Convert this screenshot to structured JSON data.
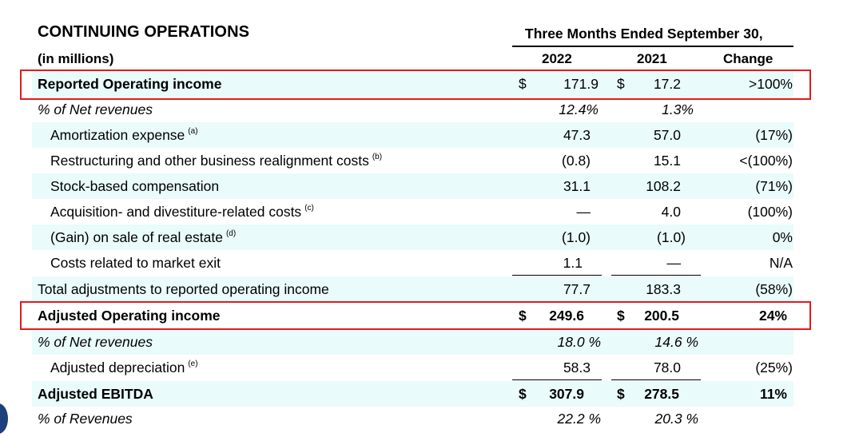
{
  "header": {
    "title": "CONTINUING OPERATIONS",
    "period": "Three Months Ended September 30,",
    "units": "(in millions)",
    "col_2022": "2022",
    "col_2021": "2021",
    "col_change": "Change"
  },
  "rows": [
    {
      "label": "Reported Operating income",
      "note": "",
      "d1": "$",
      "v2022": "171.9",
      "d2": "$",
      "v2021": "17.2",
      "change": ">100%"
    },
    {
      "label": "% of Net revenues",
      "note": "",
      "d1": "",
      "v2022": "12.4%",
      "d2": "",
      "v2021": "1.3%",
      "change": ""
    },
    {
      "label": "Amortization expense",
      "note": "(a)",
      "d1": "",
      "v2022": "47.3",
      "d2": "",
      "v2021": "57.0",
      "change": "(17%)"
    },
    {
      "label": "Restructuring and other business realignment costs",
      "note": "(b)",
      "d1": "",
      "v2022": "(0.8)",
      "d2": "",
      "v2021": "15.1",
      "change": "<(100%)"
    },
    {
      "label": "Stock-based compensation",
      "note": "",
      "d1": "",
      "v2022": "31.1",
      "d2": "",
      "v2021": "108.2",
      "change": "(71%)"
    },
    {
      "label": "Acquisition- and divestiture-related costs",
      "note": "(c)",
      "d1": "",
      "v2022": "—",
      "d2": "",
      "v2021": "4.0",
      "change": "(100%)"
    },
    {
      "label": "(Gain) on sale of real estate",
      "note": "(d)",
      "d1": "",
      "v2022": "(1.0)",
      "d2": "",
      "v2021": "(1.0)",
      "change": "0%"
    },
    {
      "label": "Costs related to market exit",
      "note": "",
      "d1": "",
      "v2022": "1.1",
      "d2": "",
      "v2021": "—",
      "change": "N/A"
    },
    {
      "label": "Total adjustments to reported operating income",
      "note": "",
      "d1": "",
      "v2022": "77.7",
      "d2": "",
      "v2021": "183.3",
      "change": "(58%)"
    },
    {
      "label": "Adjusted Operating income",
      "note": "",
      "d1": "$",
      "v2022": "249.6",
      "d2": "$",
      "v2021": "200.5",
      "change": "24%"
    },
    {
      "label": "% of Net revenues",
      "note": "",
      "d1": "",
      "v2022": "18.0 %",
      "d2": "",
      "v2021": "14.6 %",
      "change": ""
    },
    {
      "label": "Adjusted depreciation",
      "note": "(e)",
      "d1": "",
      "v2022": "58.3",
      "d2": "",
      "v2021": "78.0",
      "change": "(25%)"
    },
    {
      "label": "Adjusted EBITDA",
      "note": "",
      "d1": "$",
      "v2022": "307.9",
      "d2": "$",
      "v2021": "278.5",
      "change": "11%"
    },
    {
      "label": "% of Revenues",
      "note": "",
      "d1": "",
      "v2022": "22.2 %",
      "d2": "",
      "v2021": "20.3 %",
      "change": ""
    }
  ],
  "colors": {
    "highlight_box": "#e31a1a",
    "row_shading": "#e9fbfb"
  }
}
